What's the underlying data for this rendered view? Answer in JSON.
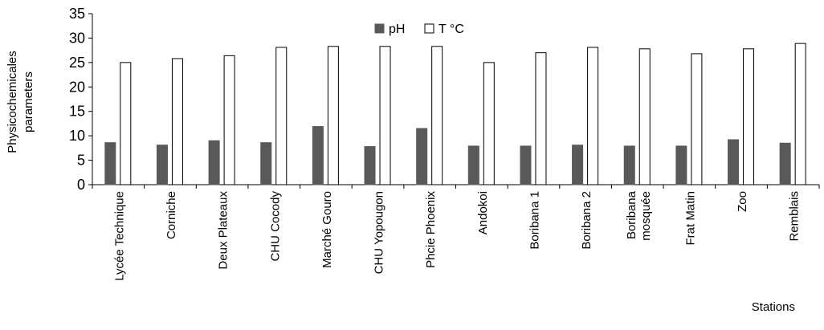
{
  "chart_data": {
    "type": "bar",
    "title": "",
    "xlabel": "Stations",
    "ylabel": [
      "Physicochemicales",
      "parameters"
    ],
    "ylim": [
      0,
      35
    ],
    "yticks": [
      0,
      5,
      10,
      15,
      20,
      25,
      30,
      35
    ],
    "grid": false,
    "legend_position": "top-center",
    "categories": [
      [
        "Lycée Technique"
      ],
      [
        "Corniche"
      ],
      [
        "Deux Plateaux"
      ],
      [
        "CHU Cocody"
      ],
      [
        "Marché Gouro"
      ],
      [
        "CHU Yopougon"
      ],
      [
        "Phcie Phoenix"
      ],
      [
        "Andokoi"
      ],
      [
        "Boribana 1"
      ],
      [
        "Boribana 2"
      ],
      [
        "Boribana",
        "mosquée"
      ],
      [
        "Frat Matin"
      ],
      [
        "Zoo"
      ],
      [
        "Remblais"
      ]
    ],
    "series": [
      {
        "name": "pH",
        "fill": "#595959",
        "stroke": "#595959",
        "values": [
          8.6,
          8.1,
          9.0,
          8.6,
          11.9,
          7.8,
          11.5,
          7.9,
          7.9,
          8.1,
          7.9,
          7.9,
          9.2,
          8.5
        ]
      },
      {
        "name": "T °C",
        "fill": "#ffffff",
        "stroke": "#000000",
        "values": [
          25.0,
          25.8,
          26.4,
          28.1,
          28.3,
          28.3,
          28.3,
          25.0,
          27.0,
          28.1,
          27.8,
          26.8,
          27.8,
          28.9
        ]
      }
    ]
  }
}
